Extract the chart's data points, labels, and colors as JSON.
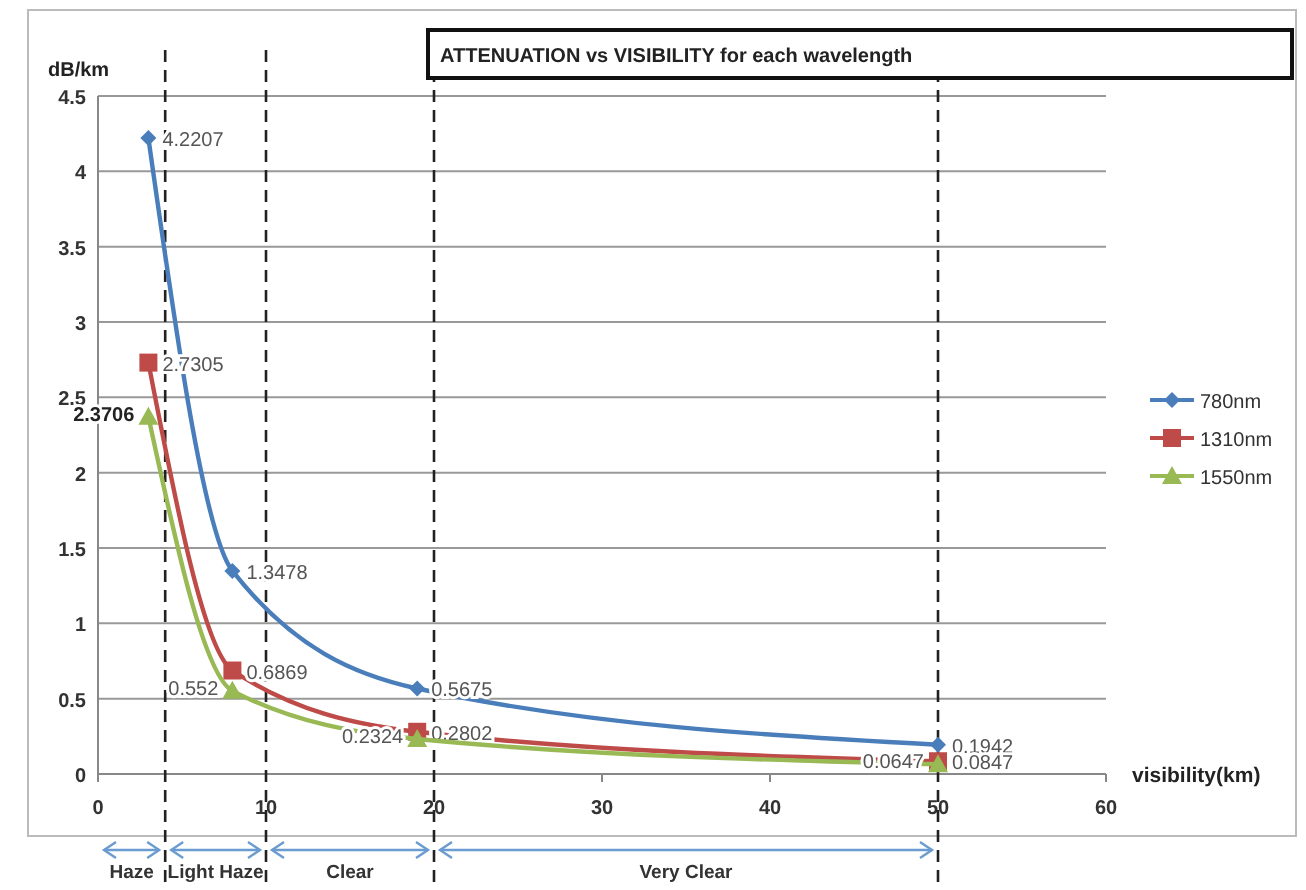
{
  "chart_data": {
    "type": "line",
    "title": "ATTENUATION  vs VISIBILITY  for each wavelength",
    "xlabel": "visibility(km)",
    "ylabel": "dB/km",
    "x": [
      3,
      8,
      19,
      50
    ],
    "series": [
      {
        "name": "780nm",
        "color": "#4a7ebb",
        "marker": "diamond",
        "values": [
          4.2207,
          1.3478,
          0.5675,
          0.1942
        ]
      },
      {
        "name": "1310nm",
        "color": "#be4b48",
        "marker": "square",
        "values": [
          2.7305,
          0.6869,
          0.2802,
          0.0847
        ]
      },
      {
        "name": "1550nm",
        "color": "#98b954",
        "marker": "triangle",
        "values": [
          2.3706,
          0.552,
          0.2324,
          0.0647
        ]
      }
    ],
    "xlim": [
      0,
      60
    ],
    "xticks": [
      0,
      10,
      20,
      30,
      40,
      50,
      60
    ],
    "ylim": [
      0,
      4.5
    ],
    "yticks": [
      0,
      0.5,
      1,
      1.5,
      2,
      2.5,
      3,
      3.5,
      4,
      4.5
    ],
    "grid": "y",
    "legend": "right",
    "data_labels": true,
    "ref_lines": [
      {
        "axis": "x",
        "value": 4,
        "line_style": "dashed"
      },
      {
        "axis": "x",
        "value": 10,
        "line_style": "dashed"
      },
      {
        "axis": "x",
        "value": 20,
        "line_style": "dashed"
      },
      {
        "axis": "x",
        "value": 50,
        "line_style": "dashed"
      }
    ],
    "annotations": [
      "Haze",
      "Light Haze",
      "Clear",
      "Very Clear"
    ]
  }
}
